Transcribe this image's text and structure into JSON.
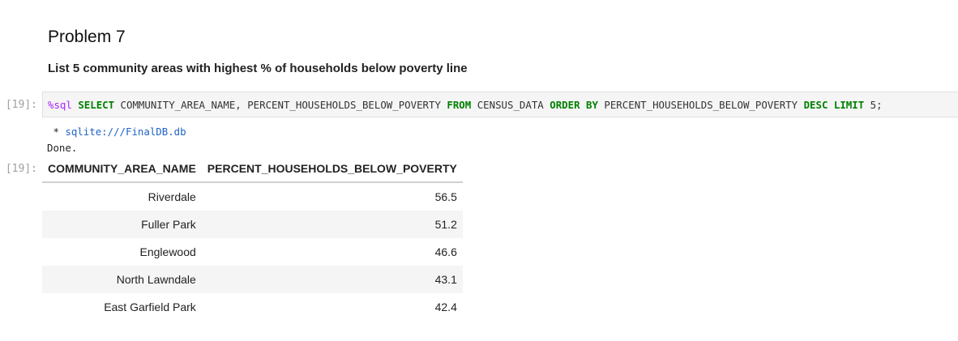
{
  "markdown": {
    "heading": "Problem 7",
    "paragraph": "List 5 community areas with highest % of households below poverty line"
  },
  "cell": {
    "input_prompt": "[19]:",
    "output_prompt": "[19]:",
    "code": {
      "magic": "%sql",
      "kw_select": "SELECT",
      "columns": "COMMUNITY_AREA_NAME, PERCENT_HOUSEHOLDS_BELOW_POVERTY",
      "kw_from": "FROM",
      "table": "CENSUS_DATA",
      "kw_order_by": "ORDER BY",
      "order_col": "PERCENT_HOUSEHOLDS_BELOW_POVERTY",
      "kw_desc": "DESC",
      "kw_limit": "LIMIT",
      "limit_val": "5;"
    },
    "output": {
      "db_prefix": " * ",
      "db_uri": "sqlite:///FinalDB.db",
      "done": "Done."
    }
  },
  "table": {
    "headers": [
      "COMMUNITY_AREA_NAME",
      "PERCENT_HOUSEHOLDS_BELOW_POVERTY"
    ],
    "rows": [
      [
        "Riverdale",
        "56.5"
      ],
      [
        "Fuller Park",
        "51.2"
      ],
      [
        "Englewood",
        "46.6"
      ],
      [
        "North Lawndale",
        "43.1"
      ],
      [
        "East Garfield Park",
        "42.4"
      ]
    ]
  }
}
